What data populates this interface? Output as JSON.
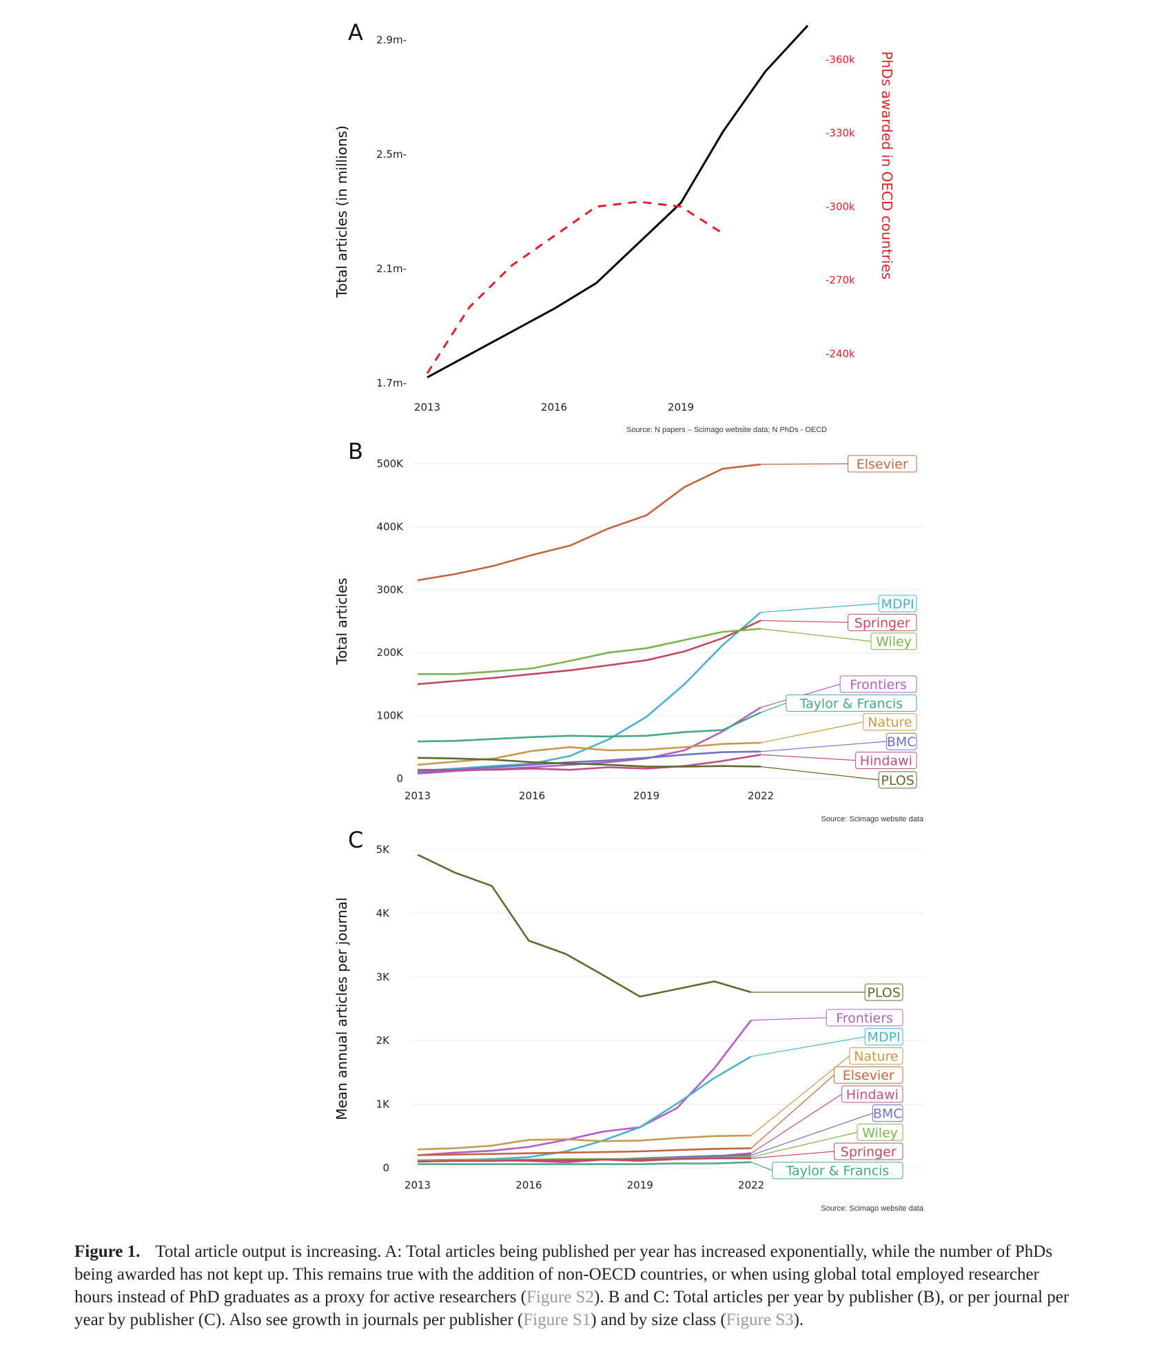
{
  "chart_data": [
    {
      "panel": "A",
      "type": "line",
      "ylabel": "Total articles (in millions)",
      "y2label": "PhDs awarded in OECD countries",
      "source": "Source: N papers – Scimago website data; N PhDs - OECD",
      "xlim": [
        2013,
        2022
      ],
      "x_ticks": [
        2013,
        2016,
        2019
      ],
      "ylim": [
        1.7,
        2.9
      ],
      "y_ticks": [
        {
          "value": 1.7,
          "label": "1.7m"
        },
        {
          "value": 2.1,
          "label": "2.1m"
        },
        {
          "value": 2.5,
          "label": "2.5m"
        },
        {
          "value": 2.9,
          "label": "2.9m"
        }
      ],
      "y2lim": [
        228,
        368
      ],
      "y2_ticks": [
        {
          "value": 240,
          "label": "240k"
        },
        {
          "value": 270,
          "label": "270k"
        },
        {
          "value": 300,
          "label": "300k"
        },
        {
          "value": 330,
          "label": "330k"
        },
        {
          "value": 360,
          "label": "360k"
        }
      ],
      "series": [
        {
          "axis": "left",
          "color": "#000000",
          "dash": false,
          "x": [
            2013,
            2014,
            2015,
            2016,
            2017,
            2018,
            2019,
            2020,
            2021,
            2022
          ],
          "values": [
            1.72,
            1.8,
            1.88,
            1.96,
            2.05,
            2.19,
            2.33,
            2.58,
            2.79,
            2.95
          ]
        },
        {
          "axis": "right",
          "color": "#d9232a",
          "dash": true,
          "x": [
            2013,
            2014,
            2015,
            2016,
            2017,
            2018,
            2019,
            2020
          ],
          "values": [
            232,
            259,
            276,
            288,
            300,
            302,
            300,
            289
          ]
        }
      ]
    },
    {
      "panel": "B",
      "type": "line",
      "ylabel": "Total articles",
      "source": "Source: Scimago website data",
      "xlim": [
        2013,
        2022
      ],
      "x_ticks": [
        2013,
        2016,
        2019,
        2022
      ],
      "ylim": [
        0,
        500000
      ],
      "y_ticks": [
        {
          "value": 0,
          "label": "0"
        },
        {
          "value": 100000,
          "label": "100K"
        },
        {
          "value": 200000,
          "label": "200K"
        },
        {
          "value": 300000,
          "label": "300K"
        },
        {
          "value": 400000,
          "label": "400K"
        },
        {
          "value": 500000,
          "label": "500K"
        }
      ],
      "grid": true,
      "series": [
        {
          "name": "Elsevier",
          "color": "#c2643f",
          "label_y": 500000,
          "values": [
            315000,
            325000,
            338000,
            355000,
            370000,
            397000,
            418000,
            463000,
            492000,
            499000
          ]
        },
        {
          "name": "MDPI",
          "color": "#4ab2c9",
          "label_y": 278000,
          "values": [
            12000,
            16000,
            20000,
            24000,
            36000,
            62000,
            98000,
            150000,
            212000,
            264000
          ]
        },
        {
          "name": "Springer",
          "color": "#c2485e",
          "label_y": 248000,
          "values": [
            150000,
            155000,
            160000,
            166000,
            172000,
            180000,
            188000,
            202000,
            223000,
            251000
          ]
        },
        {
          "name": "Wiley",
          "color": "#7bb34d",
          "label_y": 218000,
          "values": [
            166000,
            166000,
            170000,
            175000,
            187000,
            200000,
            207000,
            220000,
            233000,
            238000
          ]
        },
        {
          "name": "Frontiers",
          "color": "#b25ec4",
          "label_y": 150000,
          "values": [
            8000,
            12000,
            15000,
            18000,
            22000,
            26000,
            32000,
            45000,
            75000,
            113000
          ]
        },
        {
          "name": "Taylor & Francis",
          "color": "#46a883",
          "label_y": 120000,
          "values": [
            59000,
            60000,
            63000,
            66000,
            68000,
            67000,
            68000,
            74000,
            77000,
            105000
          ]
        },
        {
          "name": "Nature",
          "color": "#c79a50",
          "label_y": 90000,
          "values": [
            22000,
            27000,
            32000,
            44000,
            50000,
            45000,
            46000,
            50000,
            55000,
            57000
          ]
        },
        {
          "name": "BMC",
          "color": "#6e72c2",
          "label_y": 59000,
          "values": [
            10000,
            14000,
            18000,
            22000,
            26000,
            29000,
            33000,
            38000,
            42000,
            43000
          ]
        },
        {
          "name": "Hindawi",
          "color": "#c24e86",
          "label_y": 29000,
          "values": [
            14000,
            14000,
            14000,
            16000,
            14000,
            18000,
            16000,
            20000,
            28000,
            38000
          ]
        },
        {
          "name": "PLOS",
          "color": "#5c6b30",
          "label_y": -2000,
          "values": [
            33000,
            32000,
            30000,
            26000,
            24000,
            22000,
            19000,
            19000,
            20000,
            19000
          ]
        }
      ]
    },
    {
      "panel": "C",
      "type": "line",
      "ylabel": "Mean annual articles per journal",
      "source": "Source: Scimago website data",
      "xlim": [
        2013,
        2022
      ],
      "x_ticks": [
        2013,
        2016,
        2019,
        2022
      ],
      "ylim": [
        0,
        5000
      ],
      "y_ticks": [
        {
          "value": 0,
          "label": "0"
        },
        {
          "value": 1000,
          "label": "1K"
        },
        {
          "value": 2000,
          "label": "2K"
        },
        {
          "value": 3000,
          "label": "3K"
        },
        {
          "value": 4000,
          "label": "4K"
        },
        {
          "value": 5000,
          "label": "5K"
        }
      ],
      "grid": true,
      "series": [
        {
          "name": "PLOS",
          "color": "#5c6b30",
          "label_y": 2760,
          "values": [
            4920,
            4640,
            4430,
            3570,
            3360,
            3030,
            2690,
            2810,
            2930,
            2760
          ]
        },
        {
          "name": "Frontiers",
          "color": "#b25ec4",
          "label_y": 2360,
          "values": [
            200,
            240,
            270,
            330,
            440,
            570,
            640,
            940,
            1560,
            2320
          ]
        },
        {
          "name": "MDPI",
          "color": "#4ab2c9",
          "label_y": 2060,
          "values": [
            100,
            120,
            140,
            170,
            260,
            430,
            640,
            1010,
            1410,
            1750
          ]
        },
        {
          "name": "Nature",
          "color": "#c79a50",
          "label_y": 1760,
          "values": [
            290,
            310,
            350,
            440,
            450,
            420,
            430,
            470,
            500,
            510
          ]
        },
        {
          "name": "Elsevier",
          "color": "#c2643f",
          "label_y": 1460,
          "values": [
            200,
            210,
            220,
            230,
            240,
            250,
            260,
            280,
            300,
            310
          ]
        },
        {
          "name": "Hindawi",
          "color": "#c24e86",
          "label_y": 1160,
          "values": [
            110,
            120,
            120,
            110,
            90,
            130,
            110,
            140,
            180,
            230
          ]
        },
        {
          "name": "BMC",
          "color": "#6e72c2",
          "label_y": 860,
          "values": [
            110,
            120,
            120,
            130,
            120,
            130,
            150,
            170,
            190,
            200
          ]
        },
        {
          "name": "Wiley",
          "color": "#7bb34d",
          "label_y": 560,
          "values": [
            120,
            130,
            130,
            130,
            140,
            140,
            140,
            150,
            160,
            170
          ]
        },
        {
          "name": "Springer",
          "color": "#c2485e",
          "label_y": 260,
          "values": [
            100,
            110,
            110,
            120,
            120,
            130,
            130,
            140,
            150,
            150
          ]
        },
        {
          "name": "Taylor & Francis",
          "color": "#46a883",
          "label_y": -40,
          "values": [
            60,
            60,
            60,
            60,
            60,
            60,
            60,
            70,
            70,
            90
          ]
        }
      ]
    }
  ],
  "caption": {
    "lead": "Figure 1.",
    "lines": [
      [
        {
          "t": "Total article output is increasing. A: Total articles being published per year has increased exponentially, while the number of PhDs"
        }
      ],
      [
        {
          "t": "being awarded has not kept up. This remains true with the addition of non-OECD countries, or when using global total employed researcher"
        }
      ],
      [
        {
          "t": "hours instead of PhD graduates as a proxy for active researchers ("
        },
        {
          "t": "Figure S2",
          "ref": true
        },
        {
          "t": "). B and C: Total articles per year by publisher (B), or per journal per"
        }
      ],
      [
        {
          "t": "year by publisher (C). Also see growth in journals per publisher ("
        },
        {
          "t": "Figure S1",
          "ref": true
        },
        {
          "t": ") and by size class ("
        },
        {
          "t": "Figure S3",
          "ref": true
        },
        {
          "t": ")."
        }
      ]
    ]
  }
}
